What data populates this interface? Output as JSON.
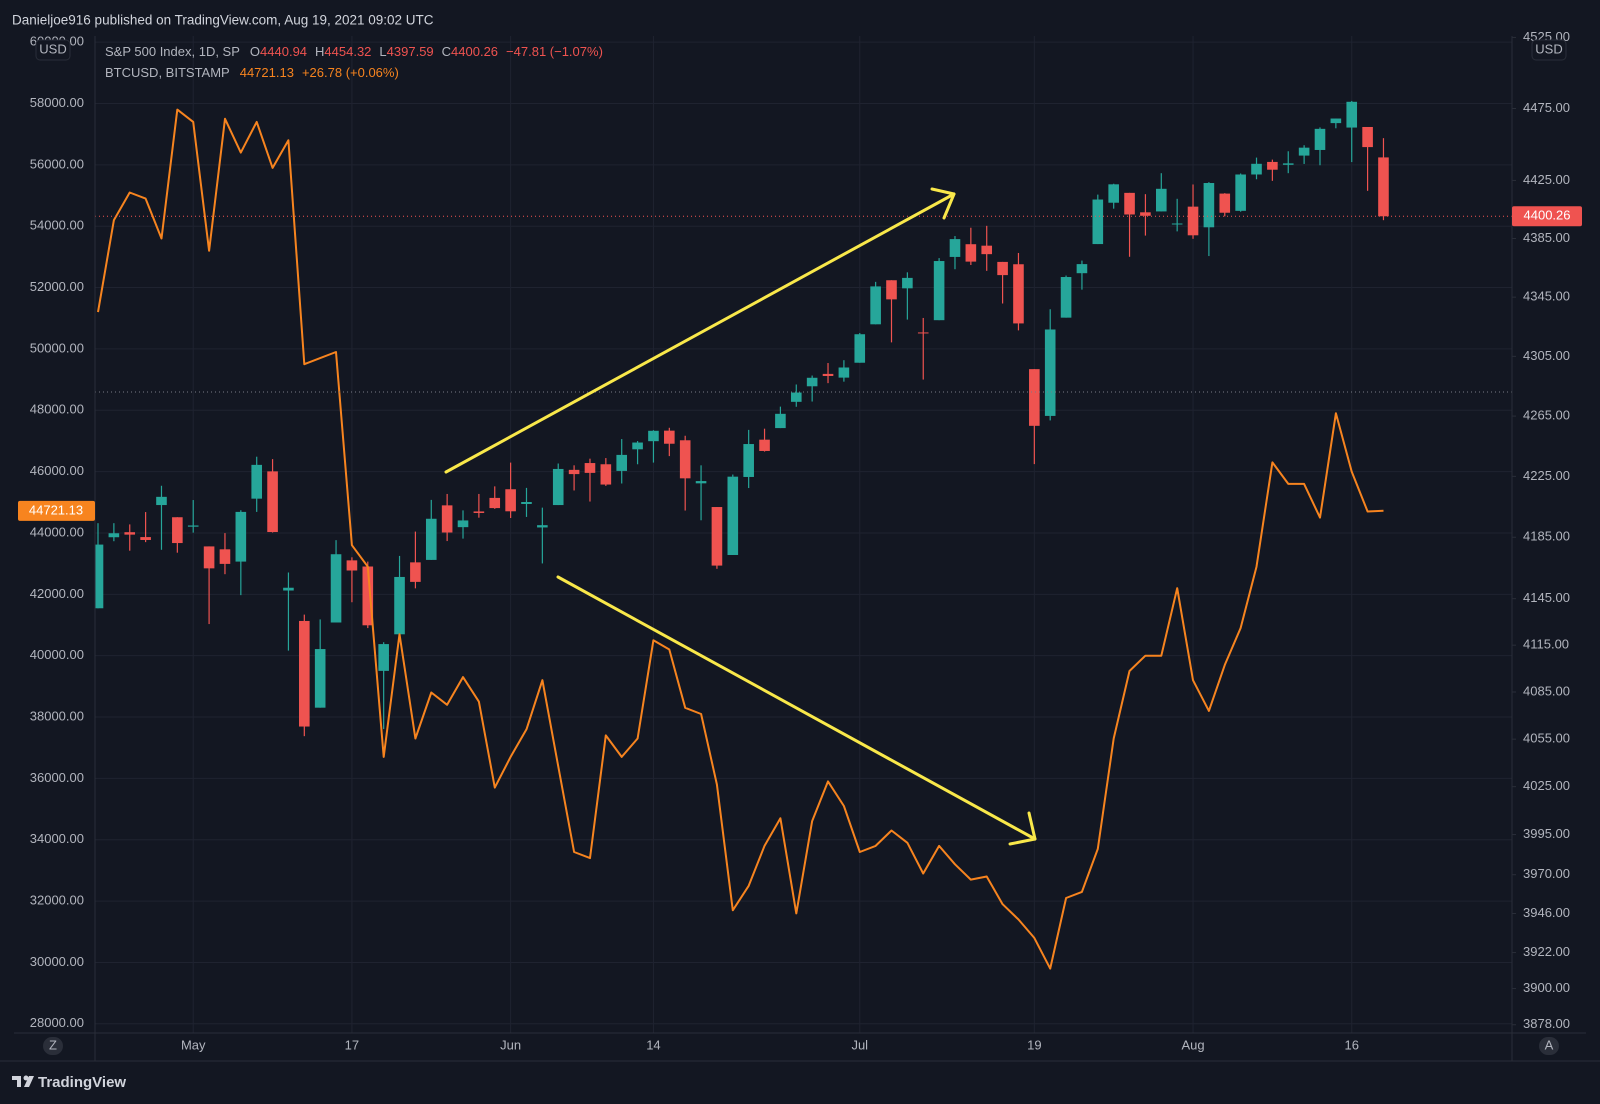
{
  "header": "Danieljoe916 published on TradingView.com, Aug 19, 2021 09:02 UTC",
  "footer": "TradingView",
  "left_unit": "USD",
  "right_unit": "USD",
  "scale_buttons": [
    "Z",
    "A"
  ],
  "chart_data": {
    "type": "candlestick",
    "categories": [
      null,
      null,
      null,
      null,
      null,
      null,
      "May",
      null,
      null,
      null,
      null,
      null,
      null,
      null,
      null,
      null,
      "17",
      null,
      null,
      null,
      null,
      null,
      null,
      null,
      null,
      null,
      "Jun",
      null,
      null,
      null,
      null,
      null,
      null,
      null,
      null,
      "14",
      null,
      null,
      null,
      null,
      null,
      null,
      null,
      null,
      null,
      null,
      null,
      null,
      "Jul",
      null,
      null,
      null,
      null,
      null,
      null,
      null,
      null,
      null,
      null,
      "19",
      null,
      null,
      null,
      null,
      null,
      null,
      null,
      null,
      null,
      "Aug",
      null,
      null,
      null,
      null,
      null,
      null,
      null,
      null,
      null,
      "16",
      null,
      null
    ],
    "ylim": [
      27700,
      60200
    ],
    "yticks": [
      {
        "value": 28000,
        "label": "28000.00"
      },
      {
        "value": 30000,
        "label": "30000.00"
      },
      {
        "value": 32000,
        "label": "32000.00"
      },
      {
        "value": 34000,
        "label": "34000.00"
      },
      {
        "value": 36000,
        "label": "36000.00"
      },
      {
        "value": 38000,
        "label": "38000.00"
      },
      {
        "value": 40000,
        "label": "40000.00"
      },
      {
        "value": 42000,
        "label": "42000.00"
      },
      {
        "value": 44000,
        "label": "44000.00"
      },
      {
        "value": 46000,
        "label": "46000.00"
      },
      {
        "value": 48000,
        "label": "48000.00"
      },
      {
        "value": 50000,
        "label": "50000.00"
      },
      {
        "value": 52000,
        "label": "52000.00"
      },
      {
        "value": 54000,
        "label": "54000.00"
      },
      {
        "value": 56000,
        "label": "56000.00"
      },
      {
        "value": 58000,
        "label": "58000.00"
      },
      {
        "value": 60000,
        "label": "60000.00"
      }
    ],
    "y2lim": [
      3873,
      4526
    ],
    "y2log": true,
    "y2ticks": [
      {
        "value": 3878,
        "label": "3878.00"
      },
      {
        "value": 3900,
        "label": "3900.00"
      },
      {
        "value": 3922,
        "label": "3922.00"
      },
      {
        "value": 3946,
        "label": "3946.00"
      },
      {
        "value": 3970,
        "label": "3970.00"
      },
      {
        "value": 3995,
        "label": "3995.00"
      },
      {
        "value": 4025,
        "label": "4025.00"
      },
      {
        "value": 4055,
        "label": "4055.00"
      },
      {
        "value": 4085,
        "label": "4085.00"
      },
      {
        "value": 4115,
        "label": "4115.00"
      },
      {
        "value": 4145,
        "label": "4145.00"
      },
      {
        "value": 4185,
        "label": "4185.00"
      },
      {
        "value": 4225,
        "label": "4225.00"
      },
      {
        "value": 4265,
        "label": "4265.00"
      },
      {
        "value": 4305,
        "label": "4305.00"
      },
      {
        "value": 4345,
        "label": "4345.00"
      },
      {
        "value": 4385,
        "label": "4385.00"
      },
      {
        "value": 4425,
        "label": "4425.00"
      },
      {
        "value": 4475,
        "label": "4475.00"
      },
      {
        "value": 4525,
        "label": "4525.00"
      }
    ],
    "grid": true,
    "series": [
      {
        "name": "S&P 500 Index, 1D, SP",
        "type": "candlestick",
        "axis": "y2",
        "up_color": "#26a69a",
        "down_color": "#ef5350",
        "ohlc_letters": [
          "O",
          "H",
          "L",
          "C"
        ],
        "change_label": "−47.81 (−1.07%)",
        "open": [
          4138.8,
          4185.0,
          4188.3,
          4185.1,
          4206.1,
          4198.1,
          4191.9,
          4179.0,
          4177.1,
          4169.1,
          4210.3,
          4228.3,
          4150.3,
          4130.6,
          4075.0,
          4129.6,
          4169.9,
          4165.9,
          4098.5,
          4122.0,
          4168.6,
          4170.2,
          4205.9,
          4191.6,
          4201.9,
          4210.8,
          4216.5,
          4206.8,
          4191.4,
          4206.1,
          4229.3,
          4233.8,
          4233.0,
          4228.6,
          4242.9,
          4248.3,
          4255.3,
          4248.9,
          4220.4,
          4204.8,
          4173.4,
          4224.6,
          4249.3,
          4257.0,
          4274.5,
          4284.9,
          4293.2,
          4290.7,
          4300.7,
          4326.6,
          4356.5,
          4351.0,
          4321.1,
          4329.4,
          4372.4,
          4381.1,
          4380.1,
          4369.0,
          4367.4,
          4296.4,
          4265.1,
          4331.1,
          4361.3,
          4381.2,
          4409.6,
          4416.4,
          4403.0,
          4403.6,
          4395.1,
          4406.9,
          4392.7,
          4415.9,
          4404.0,
          4429.1,
          4437.8,
          4435.8,
          4442.2,
          4446.1,
          4464.8,
          4461.7,
          4462.1,
          4440.94
        ],
        "high": [
          4194.2,
          4194.2,
          4193.4,
          4201.5,
          4218.8,
          4198.1,
          4209.4,
          4179.0,
          4187.7,
          4202.7,
          4238.0,
          4236.4,
          4162.0,
          4134.7,
          4131.6,
          4183.1,
          4171.9,
          4169.1,
          4116.9,
          4172.8,
          4188.7,
          4209.5,
          4213.4,
          4202.6,
          4213.4,
          4218.4,
          4234.1,
          4217.4,
          4204.4,
          4233.5,
          4232.3,
          4236.7,
          4237.1,
          4249.7,
          4248.4,
          4255.6,
          4257.2,
          4251.9,
          4232.3,
          4204.8,
          4226.2,
          4255.8,
          4256.6,
          4271.3,
          4286.1,
          4292.1,
          4300.5,
          4302.4,
          4320.7,
          4355.4,
          4356.5,
          4361.9,
          4330.9,
          4371.6,
          4386.7,
          4392.4,
          4393.7,
          4369.0,
          4375.1,
          4296.4,
          4336.8,
          4359.7,
          4369.9,
          4415.2,
          4422.7,
          4416.4,
          4415.5,
          4430.0,
          4412.3,
          4422.2,
          4423.8,
          4416.2,
          4429.8,
          4440.8,
          4439.4,
          4445.2,
          4449.4,
          4461.8,
          4468.0,
          4480.3,
          4462.1,
          4454.32
        ],
        "low": [
          4138.8,
          4182.4,
          4176.2,
          4181.8,
          4176.8,
          4174.9,
          4188.0,
          4128.6,
          4160.9,
          4147.3,
          4201.6,
          4188.1,
          4111.5,
          4056.9,
          4075.0,
          4129.6,
          4142.7,
          4126.0,
          4061.4,
          4119.0,
          4151.7,
          4170.2,
          4182.5,
          4184.1,
          4197.8,
          4203.6,
          4197.6,
          4198.3,
          4167.9,
          4206.1,
          4215.7,
          4208.4,
          4218.7,
          4220.3,
          4233.0,
          4234.1,
          4238.4,
          4202.5,
          4196.1,
          4164.4,
          4173.4,
          4217.3,
          4241.4,
          4257.0,
          4271.2,
          4274.7,
          4287.0,
          4288.0,
          4300.7,
          4326.6,
          4314.4,
          4329.8,
          4289.4,
          4329.4,
          4364.0,
          4366.9,
          4362.9,
          4340.7,
          4322.5,
          4233.1,
          4262.1,
          4331.1,
          4350.1,
          4381.2,
          4405.5,
          4372.5,
          4387.0,
          4403.6,
          4389.9,
          4384.8,
          4373.0,
          4400.2,
          4403.4,
          4425.8,
          4424.7,
          4430.0,
          4436.4,
          4435.5,
          4461.2,
          4437.7,
          4417.8,
          4397.59
        ],
        "close": [
          4180.2,
          4187.6,
          4186.7,
          4183.2,
          4211.5,
          4181.2,
          4192.7,
          4164.7,
          4167.6,
          4201.6,
          4232.6,
          4188.4,
          4152.1,
          4063.0,
          4112.5,
          4173.9,
          4163.3,
          4127.8,
          4115.7,
          4159.1,
          4155.9,
          4197.1,
          4188.1,
          4196.0,
          4200.9,
          4204.1,
          4202.0,
          4208.1,
          4192.9,
          4229.9,
          4226.5,
          4227.3,
          4219.6,
          4239.2,
          4247.4,
          4255.2,
          4246.6,
          4223.7,
          4221.9,
          4166.5,
          4224.8,
          4246.4,
          4241.8,
          4266.5,
          4280.7,
          4290.6,
          4291.8,
          4297.5,
          4319.9,
          4352.3,
          4343.5,
          4358.1,
          4320.8,
          4369.6,
          4384.6,
          4369.2,
          4374.3,
          4360.0,
          4327.2,
          4258.5,
          4323.1,
          4358.7,
          4367.5,
          4411.8,
          4422.3,
          4401.5,
          4400.6,
          4419.2,
          4395.3,
          4387.2,
          4423.2,
          4402.7,
          4429.1,
          4436.5,
          4432.4,
          4436.8,
          4447.7,
          4460.8,
          4468.0,
          4479.7,
          4448.1,
          4400.26
        ]
      },
      {
        "name": "BTCUSD, BITSTAMP",
        "type": "line",
        "color": "#f7841f",
        "change_label": "+26.78 (+0.06%)",
        "values": [
          51200,
          54200,
          55100,
          54900,
          53600,
          57800,
          57400,
          53200,
          57500,
          56400,
          57400,
          55900,
          56800,
          49500,
          49700,
          49900,
          43600,
          42900,
          36700,
          40700,
          37300,
          38800,
          38400,
          39300,
          38500,
          35700,
          36700,
          37600,
          39200,
          36400,
          33600,
          33400,
          37400,
          36700,
          37300,
          40500,
          40200,
          38300,
          38100,
          35800,
          31700,
          32500,
          33800,
          34700,
          31600,
          34600,
          35900,
          35100,
          33600,
          33800,
          34300,
          33900,
          32900,
          33800,
          33200,
          32700,
          32800,
          31900,
          31400,
          30800,
          29800,
          32100,
          32300,
          33700,
          37300,
          39500,
          40000,
          40000,
          42200,
          39200,
          38200,
          39700,
          40900,
          42900,
          46300,
          45600,
          45600,
          44500,
          47900,
          46000,
          44700,
          44721.13
        ]
      }
    ]
  }
}
